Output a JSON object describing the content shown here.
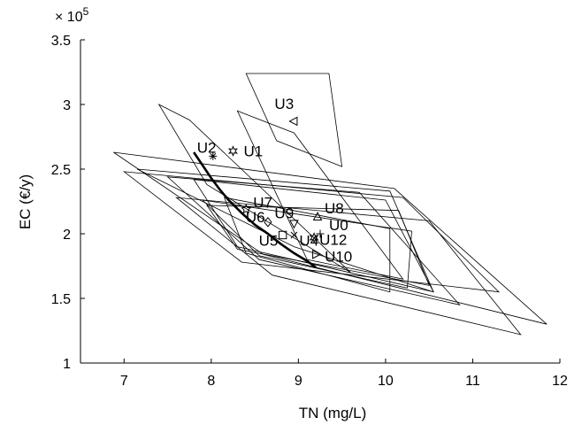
{
  "chart_data": {
    "type": "scatter",
    "title": "",
    "xlabel": "TN (mg/L)",
    "ylabel": "EC (€/y)",
    "y_multiplier_label": "× 10",
    "y_multiplier_exponent": "5",
    "xlim": [
      6.5,
      12
    ],
    "ylim": [
      1.0,
      3.5
    ],
    "x_ticks": [
      7,
      8,
      9,
      10,
      11,
      12
    ],
    "y_ticks": [
      1,
      1.5,
      2,
      2.5,
      3,
      3.5
    ],
    "y_scale": 100000,
    "grid": false,
    "legend": "none",
    "colors": {
      "axis": "#000000",
      "polygon": "#000000",
      "front": "#000000"
    },
    "points": [
      {
        "label": "U1",
        "x": 8.25,
        "y": 2.64,
        "marker": "hexagram"
      },
      {
        "label": "U2",
        "x": 8.02,
        "y": 2.6,
        "marker": "asterisk"
      },
      {
        "label": "U3",
        "x": 8.95,
        "y": 2.87,
        "marker": "triangle-left"
      },
      {
        "label": "U7",
        "x": 8.4,
        "y": 2.19,
        "marker": "pentagram"
      },
      {
        "label": "U6",
        "x": 8.65,
        "y": 2.09,
        "marker": "diamond"
      },
      {
        "label": "U9",
        "x": 8.95,
        "y": 2.08,
        "marker": "triangle-down"
      },
      {
        "label": "U8",
        "x": 9.22,
        "y": 2.13,
        "marker": "triangle-up"
      },
      {
        "label": "U0",
        "x": 9.25,
        "y": 2.0,
        "marker": "plus"
      },
      {
        "label": "U5",
        "x": 8.82,
        "y": 1.99,
        "marker": "square"
      },
      {
        "label": "U4",
        "x": 8.95,
        "y": 1.99,
        "marker": "x"
      },
      {
        "label": "U12",
        "x": 9.18,
        "y": 1.97,
        "marker": "hexagram"
      },
      {
        "label": "U10",
        "x": 9.2,
        "y": 1.84,
        "marker": "triangle-right"
      }
    ],
    "uncertainty_regions": [
      {
        "label": "U3",
        "vertices": [
          [
            8.4,
            3.24
          ],
          [
            9.35,
            3.24
          ],
          [
            9.5,
            2.52
          ],
          [
            8.75,
            2.72
          ]
        ]
      },
      {
        "label": "U1",
        "vertices": [
          [
            8.3,
            2.95
          ],
          [
            8.95,
            2.78
          ],
          [
            10.2,
            1.65
          ],
          [
            9.1,
            1.8
          ]
        ]
      },
      {
        "label": "U2",
        "vertices": [
          [
            7.4,
            3.0
          ],
          [
            7.75,
            2.88
          ],
          [
            9.6,
            1.7
          ],
          [
            7.95,
            2.38
          ]
        ]
      },
      {
        "label": "U7",
        "vertices": [
          [
            6.88,
            2.63
          ],
          [
            10.1,
            2.35
          ],
          [
            11.85,
            1.3
          ],
          [
            8.6,
            1.84
          ]
        ]
      },
      {
        "label": "U6",
        "vertices": [
          [
            7.0,
            2.48
          ],
          [
            10.2,
            2.28
          ],
          [
            11.3,
            1.55
          ],
          [
            8.35,
            1.78
          ]
        ]
      },
      {
        "label": "U9",
        "vertices": [
          [
            7.15,
            2.5
          ],
          [
            10.05,
            2.33
          ],
          [
            10.55,
            1.55
          ],
          [
            8.95,
            1.9
          ]
        ]
      },
      {
        "label": "U8",
        "vertices": [
          [
            7.5,
            2.44
          ],
          [
            9.7,
            2.32
          ],
          [
            10.85,
            1.45
          ],
          [
            8.55,
            1.8
          ]
        ]
      },
      {
        "label": "U0",
        "vertices": [
          [
            7.8,
            2.42
          ],
          [
            10.0,
            2.26
          ],
          [
            10.55,
            1.55
          ],
          [
            8.3,
            1.9
          ]
        ]
      },
      {
        "label": "U5",
        "vertices": [
          [
            7.6,
            2.28
          ],
          [
            10.5,
            2.1
          ],
          [
            11.55,
            1.22
          ],
          [
            8.7,
            1.68
          ]
        ]
      },
      {
        "label": "U4",
        "vertices": [
          [
            7.9,
            2.26
          ],
          [
            10.3,
            2.02
          ],
          [
            10.25,
            1.58
          ],
          [
            8.55,
            1.83
          ]
        ]
      },
      {
        "label": "U12",
        "vertices": [
          [
            7.95,
            2.22
          ],
          [
            10.15,
            2.18
          ],
          [
            10.5,
            1.6
          ],
          [
            8.3,
            1.88
          ]
        ]
      },
      {
        "label": "U10",
        "vertices": [
          [
            8.15,
            2.28
          ],
          [
            10.05,
            2.04
          ],
          [
            10.05,
            1.55
          ],
          [
            8.4,
            1.85
          ]
        ]
      }
    ],
    "pareto_front": {
      "x": [
        7.8,
        7.9,
        8.0,
        8.1,
        8.2,
        8.35,
        8.5,
        8.65,
        8.8,
        8.95,
        9.1,
        9.2
      ],
      "y": [
        2.63,
        2.53,
        2.43,
        2.34,
        2.26,
        2.16,
        2.07,
        2.0,
        1.92,
        1.85,
        1.79,
        1.74
      ]
    }
  }
}
